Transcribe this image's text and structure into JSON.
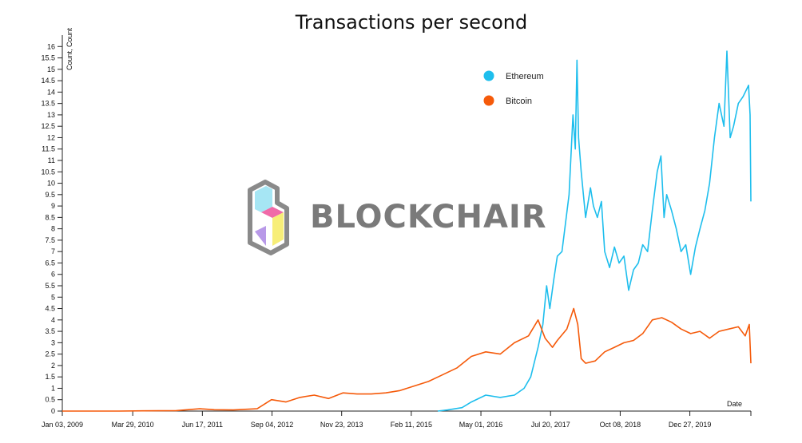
{
  "chart_data": {
    "type": "line",
    "title": "Transactions per second",
    "xlabel": "Date",
    "ylabel": "Count, Count",
    "ylim": [
      0,
      16.5
    ],
    "y_ticks": [
      "0",
      "0.5",
      "1",
      "1.5",
      "2",
      "2.5",
      "3",
      "3.5",
      "4",
      "4.5",
      "5",
      "5.5",
      "6",
      "6.5",
      "7",
      "7.5",
      "8",
      "8.5",
      "9",
      "9.5",
      "10",
      "10.5",
      "11",
      "11.5",
      "12",
      "12.5",
      "13",
      "13.5",
      "14",
      "14.5",
      "15",
      "15.5",
      "16"
    ],
    "x_ticks": [
      "Jan 03, 2009",
      "Mar 29, 2010",
      "Jun 17, 2011",
      "Sep 04, 2012",
      "Nov 23, 2013",
      "Feb 11, 2015",
      "May 01, 2016",
      "Jul 20, 2017",
      "Oct 08, 2018",
      "Dec 27, 2019"
    ],
    "xlim": [
      "2009-01-03",
      "2021-01-20"
    ],
    "legend_position": "top-right",
    "series": [
      {
        "name": "Ethereum",
        "color": "#1ebeed",
        "points": [
          [
            "2015-07-30",
            0.0
          ],
          [
            "2015-10-01",
            0.05
          ],
          [
            "2016-01-01",
            0.15
          ],
          [
            "2016-03-01",
            0.4
          ],
          [
            "2016-06-01",
            0.7
          ],
          [
            "2016-09-01",
            0.6
          ],
          [
            "2016-12-01",
            0.7
          ],
          [
            "2017-02-01",
            1.0
          ],
          [
            "2017-03-15",
            1.5
          ],
          [
            "2017-05-01",
            2.8
          ],
          [
            "2017-06-01",
            3.8
          ],
          [
            "2017-06-25",
            5.5
          ],
          [
            "2017-07-15",
            4.5
          ],
          [
            "2017-08-10",
            5.8
          ],
          [
            "2017-09-01",
            6.8
          ],
          [
            "2017-10-01",
            7.0
          ],
          [
            "2017-11-15",
            9.5
          ],
          [
            "2017-12-10",
            13.0
          ],
          [
            "2017-12-25",
            11.5
          ],
          [
            "2018-01-05",
            15.4
          ],
          [
            "2018-01-15",
            12.0
          ],
          [
            "2018-02-01",
            10.5
          ],
          [
            "2018-03-01",
            8.5
          ],
          [
            "2018-04-01",
            9.8
          ],
          [
            "2018-04-20",
            9.0
          ],
          [
            "2018-05-15",
            8.5
          ],
          [
            "2018-06-10",
            9.2
          ],
          [
            "2018-07-01",
            7.0
          ],
          [
            "2018-08-01",
            6.3
          ],
          [
            "2018-09-01",
            7.2
          ],
          [
            "2018-10-01",
            6.5
          ],
          [
            "2018-11-01",
            6.8
          ],
          [
            "2018-12-01",
            5.3
          ],
          [
            "2019-01-01",
            6.2
          ],
          [
            "2019-02-01",
            6.5
          ],
          [
            "2019-03-01",
            7.3
          ],
          [
            "2019-04-01",
            7.0
          ],
          [
            "2019-05-01",
            8.8
          ],
          [
            "2019-06-01",
            10.5
          ],
          [
            "2019-06-25",
            11.2
          ],
          [
            "2019-07-15",
            8.5
          ],
          [
            "2019-08-01",
            9.5
          ],
          [
            "2019-09-01",
            8.8
          ],
          [
            "2019-10-01",
            8.0
          ],
          [
            "2019-11-01",
            7.0
          ],
          [
            "2019-12-01",
            7.3
          ],
          [
            "2020-01-01",
            6.0
          ],
          [
            "2020-02-01",
            7.2
          ],
          [
            "2020-03-01",
            8.0
          ],
          [
            "2020-04-01",
            8.8
          ],
          [
            "2020-05-01",
            10.0
          ],
          [
            "2020-06-01",
            12.0
          ],
          [
            "2020-07-01",
            13.5
          ],
          [
            "2020-08-01",
            12.5
          ],
          [
            "2020-08-20",
            15.8
          ],
          [
            "2020-09-10",
            12.0
          ],
          [
            "2020-10-01",
            12.5
          ],
          [
            "2020-11-01",
            13.5
          ],
          [
            "2020-12-01",
            13.8
          ],
          [
            "2021-01-05",
            14.3
          ],
          [
            "2021-01-15",
            13.0
          ],
          [
            "2021-01-20",
            9.2
          ]
        ]
      },
      {
        "name": "Bitcoin",
        "color": "#f55a0a",
        "points": [
          [
            "2009-01-03",
            0.0
          ],
          [
            "2010-01-01",
            0.0
          ],
          [
            "2010-06-01",
            0.01
          ],
          [
            "2011-01-01",
            0.02
          ],
          [
            "2011-06-01",
            0.1
          ],
          [
            "2011-09-01",
            0.06
          ],
          [
            "2012-01-01",
            0.05
          ],
          [
            "2012-06-01",
            0.1
          ],
          [
            "2012-09-01",
            0.5
          ],
          [
            "2012-12-01",
            0.4
          ],
          [
            "2013-03-01",
            0.6
          ],
          [
            "2013-06-01",
            0.7
          ],
          [
            "2013-09-01",
            0.55
          ],
          [
            "2013-12-01",
            0.8
          ],
          [
            "2014-03-01",
            0.75
          ],
          [
            "2014-06-01",
            0.75
          ],
          [
            "2014-09-01",
            0.8
          ],
          [
            "2014-12-01",
            0.9
          ],
          [
            "2015-03-01",
            1.1
          ],
          [
            "2015-06-01",
            1.3
          ],
          [
            "2015-09-01",
            1.6
          ],
          [
            "2015-12-01",
            1.9
          ],
          [
            "2016-03-01",
            2.4
          ],
          [
            "2016-06-01",
            2.6
          ],
          [
            "2016-09-01",
            2.5
          ],
          [
            "2016-12-01",
            3.0
          ],
          [
            "2017-03-01",
            3.3
          ],
          [
            "2017-05-01",
            4.0
          ],
          [
            "2017-06-15",
            3.2
          ],
          [
            "2017-08-01",
            2.8
          ],
          [
            "2017-09-01",
            3.1
          ],
          [
            "2017-11-01",
            3.6
          ],
          [
            "2017-12-15",
            4.5
          ],
          [
            "2018-01-10",
            3.8
          ],
          [
            "2018-02-01",
            2.3
          ],
          [
            "2018-03-01",
            2.1
          ],
          [
            "2018-05-01",
            2.2
          ],
          [
            "2018-07-01",
            2.6
          ],
          [
            "2018-09-01",
            2.8
          ],
          [
            "2018-11-01",
            3.0
          ],
          [
            "2019-01-01",
            3.1
          ],
          [
            "2019-03-01",
            3.4
          ],
          [
            "2019-05-01",
            4.0
          ],
          [
            "2019-07-01",
            4.1
          ],
          [
            "2019-09-01",
            3.9
          ],
          [
            "2019-11-01",
            3.6
          ],
          [
            "2020-01-01",
            3.4
          ],
          [
            "2020-03-01",
            3.5
          ],
          [
            "2020-05-01",
            3.2
          ],
          [
            "2020-07-01",
            3.5
          ],
          [
            "2020-09-01",
            3.6
          ],
          [
            "2020-11-01",
            3.7
          ],
          [
            "2020-12-15",
            3.3
          ],
          [
            "2021-01-10",
            3.8
          ],
          [
            "2021-01-20",
            2.1
          ]
        ]
      }
    ]
  },
  "watermark": {
    "text": "BLOCKCHAIR"
  }
}
